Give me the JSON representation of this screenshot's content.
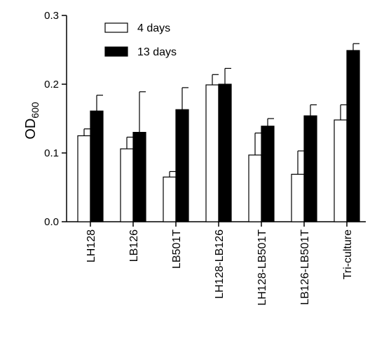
{
  "chart_data": {
    "type": "bar",
    "ylabel": "OD",
    "ylabel_subscript": "600",
    "xlabel": "",
    "ylim": [
      0,
      0.3
    ],
    "yticks": [
      "0.0",
      "0.1",
      "0.2",
      "0.3"
    ],
    "categories": [
      "LH128",
      "LB126",
      "LB501T",
      "LH128-LB126",
      "LH128-LB501T",
      "LB126-LB501T",
      "Tri-culture"
    ],
    "series": [
      {
        "name": "4 days",
        "color": "#ffffff",
        "values": [
          0.125,
          0.106,
          0.065,
          0.199,
          0.097,
          0.069,
          0.148
        ],
        "errors": [
          0.01,
          0.017,
          0.008,
          0.015,
          0.032,
          0.034,
          0.022
        ]
      },
      {
        "name": "13 days",
        "color": "#000000",
        "values": [
          0.161,
          0.13,
          0.163,
          0.2,
          0.139,
          0.154,
          0.249
        ],
        "errors": [
          0.023,
          0.059,
          0.032,
          0.023,
          0.011,
          0.016,
          0.01
        ]
      }
    ],
    "legend_position": "top-left",
    "grid": false
  }
}
